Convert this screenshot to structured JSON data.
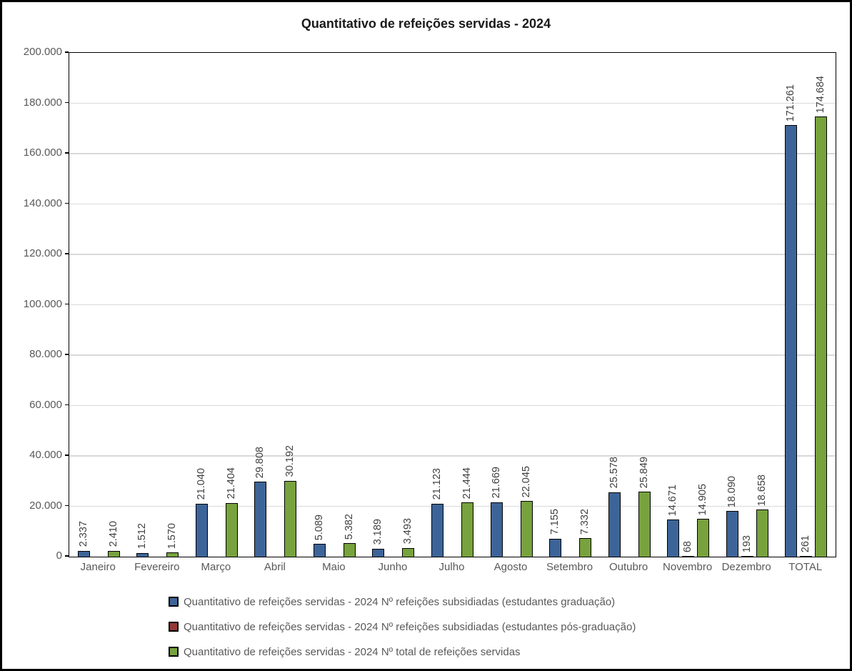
{
  "chart_data": {
    "type": "bar",
    "title": "Quantitativo de refeições servidas - 2024",
    "categories": [
      "Janeiro",
      "Fevereiro",
      "Março",
      "Abril",
      "Maio",
      "Junho",
      "Julho",
      "Agosto",
      "Setembro",
      "Outubro",
      "Novembro",
      "Dezembro",
      "TOTAL"
    ],
    "series": [
      {
        "name": "Quantitativo de refeições servidas - 2024 Nº refeições subsidiadas (estudantes graduação)",
        "color": "#3d6498",
        "values": [
          2337,
          1512,
          21040,
          29808,
          5089,
          3189,
          21123,
          21669,
          7155,
          25578,
          14671,
          18090,
          171261
        ],
        "labels": [
          "2.337",
          "1.512",
          "21.040",
          "29.808",
          "5.089",
          "3.189",
          "21.123",
          "21.669",
          "7.155",
          "25.578",
          "14.671",
          "18.090",
          "171.261"
        ]
      },
      {
        "name": "Quantitativo de refeições servidas - 2024 Nº refeições subsidiadas (estudantes pós-graduação)",
        "color": "#953735",
        "values": [
          0,
          0,
          0,
          0,
          0,
          0,
          0,
          0,
          0,
          0,
          68,
          193,
          261
        ],
        "labels": [
          "",
          "",
          "",
          "",
          "",
          "",
          "",
          "",
          "",
          "",
          "68",
          "193",
          "261"
        ]
      },
      {
        "name": "Quantitativo de refeições servidas - 2024 Nº total de refeições servidas",
        "color": "#77a23d",
        "values": [
          2410,
          1570,
          21404,
          30192,
          5382,
          3493,
          21444,
          22045,
          7332,
          25849,
          14905,
          18658,
          174684
        ],
        "labels": [
          "2.410",
          "1.570",
          "21.404",
          "30.192",
          "5.382",
          "3.493",
          "21.444",
          "22.045",
          "7.332",
          "25.849",
          "14.905",
          "18.658",
          "174.684"
        ]
      }
    ],
    "y_axis": {
      "min": 0,
      "max": 200000,
      "step": 20000,
      "tick_labels": [
        "0",
        "20.000",
        "40.000",
        "60.000",
        "80.000",
        "100.000",
        "120.000",
        "140.000",
        "160.000",
        "180.000",
        "200.000"
      ]
    },
    "grid": true,
    "legend_position": "bottom",
    "colors": {
      "gridline": "#d9d9d9",
      "axis": "#000000",
      "tick_text": "#595959",
      "label_text": "#404040",
      "title_text": "#1a1a1a"
    }
  }
}
